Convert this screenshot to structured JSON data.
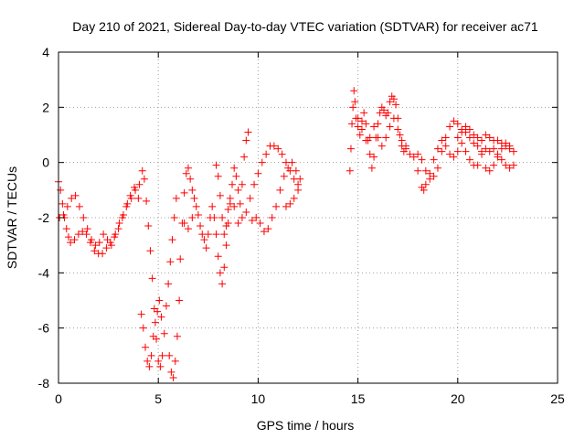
{
  "chart_data": {
    "type": "scatter",
    "title": "Day 210 of 2021, Sidereal Day-to-day VTEC variation (SDTVAR) for receiver ac71",
    "xlabel": "GPS time / hours",
    "ylabel": "SDTVAR / TECUs",
    "xlim": [
      0,
      25
    ],
    "ylim": [
      -8,
      4
    ],
    "x_ticks": [
      0,
      5,
      10,
      15,
      20,
      25
    ],
    "y_ticks": [
      -8,
      -6,
      -4,
      -2,
      0,
      2,
      4
    ],
    "grid": true,
    "marker": "+",
    "series": [
      {
        "name": "SDTVAR",
        "color": "#ff0000",
        "points": [
          [
            0.0,
            -0.7
          ],
          [
            0.1,
            -1.0
          ],
          [
            0.2,
            -1.5
          ],
          [
            0.3,
            -2.0
          ],
          [
            0.4,
            -2.4
          ],
          [
            0.5,
            -2.7
          ],
          [
            0.6,
            -2.9
          ],
          [
            0.8,
            -2.8
          ],
          [
            1.0,
            -2.6
          ],
          [
            1.2,
            -2.5
          ],
          [
            1.4,
            -2.6
          ],
          [
            1.6,
            -2.9
          ],
          [
            1.8,
            -3.2
          ],
          [
            2.0,
            -3.3
          ],
          [
            2.2,
            -3.3
          ],
          [
            2.4,
            -3.1
          ],
          [
            2.6,
            -2.9
          ],
          [
            2.8,
            -2.7
          ],
          [
            3.0,
            -2.4
          ],
          [
            3.2,
            -2.0
          ],
          [
            3.4,
            -1.6
          ],
          [
            3.6,
            -1.2
          ],
          [
            3.8,
            -0.9
          ],
          [
            4.0,
            -1.3
          ],
          [
            0.05,
            -2.0
          ],
          [
            0.25,
            -1.9
          ],
          [
            0.45,
            -1.6
          ],
          [
            0.65,
            -1.3
          ],
          [
            0.85,
            -1.2
          ],
          [
            1.05,
            -1.6
          ],
          [
            1.25,
            -2.0
          ],
          [
            1.45,
            -2.4
          ],
          [
            1.65,
            -2.8
          ],
          [
            1.85,
            -3.0
          ],
          [
            2.05,
            -2.9
          ],
          [
            2.25,
            -2.6
          ],
          [
            2.45,
            -2.8
          ],
          [
            2.65,
            -3.0
          ],
          [
            2.85,
            -2.6
          ],
          [
            3.05,
            -2.2
          ],
          [
            3.25,
            -1.9
          ],
          [
            3.45,
            -1.5
          ],
          [
            3.65,
            -1.3
          ],
          [
            3.85,
            -1.0
          ],
          [
            4.05,
            -0.8
          ],
          [
            4.2,
            -0.3
          ],
          [
            4.3,
            -0.6
          ],
          [
            4.4,
            -1.4
          ],
          [
            4.5,
            -2.3
          ],
          [
            4.6,
            -3.2
          ],
          [
            4.7,
            -4.2
          ],
          [
            4.8,
            -5.3
          ],
          [
            4.9,
            -6.4
          ],
          [
            5.0,
            -7.2
          ],
          [
            5.1,
            -7.4
          ],
          [
            5.2,
            -7.0
          ],
          [
            4.15,
            -5.5
          ],
          [
            4.25,
            -6.0
          ],
          [
            4.35,
            -6.7
          ],
          [
            4.45,
            -7.2
          ],
          [
            4.55,
            -7.4
          ],
          [
            4.65,
            -7.0
          ],
          [
            4.75,
            -6.3
          ],
          [
            4.85,
            -5.8
          ],
          [
            4.95,
            -5.4
          ],
          [
            5.05,
            -5.0
          ],
          [
            5.15,
            -5.6
          ],
          [
            5.3,
            -6.2
          ],
          [
            5.4,
            -5.2
          ],
          [
            5.5,
            -4.4
          ],
          [
            5.6,
            -3.6
          ],
          [
            5.7,
            -2.8
          ],
          [
            5.8,
            -2.0
          ],
          [
            5.9,
            -1.3
          ],
          [
            5.55,
            -7.0
          ],
          [
            5.65,
            -7.6
          ],
          [
            5.75,
            -7.8
          ],
          [
            5.85,
            -7.2
          ],
          [
            5.95,
            -6.3
          ],
          [
            6.05,
            -5.0
          ],
          [
            6.1,
            -3.5
          ],
          [
            6.2,
            -2.2
          ],
          [
            6.3,
            -1.1
          ],
          [
            6.4,
            -0.4
          ],
          [
            6.5,
            -0.2
          ],
          [
            6.6,
            -0.6
          ],
          [
            6.7,
            -1.0
          ],
          [
            6.8,
            -1.3
          ],
          [
            6.3,
            -2.2
          ],
          [
            6.5,
            -2.4
          ],
          [
            6.7,
            -2.0
          ],
          [
            6.9,
            -1.6
          ],
          [
            7.0,
            -1.9
          ],
          [
            7.1,
            -2.3
          ],
          [
            7.2,
            -2.6
          ],
          [
            7.3,
            -2.8
          ],
          [
            7.4,
            -3.1
          ],
          [
            7.5,
            -2.6
          ],
          [
            7.6,
            -2.0
          ],
          [
            7.7,
            -1.6
          ],
          [
            7.8,
            -2.0
          ],
          [
            7.9,
            -2.6
          ],
          [
            8.0,
            -3.4
          ],
          [
            8.1,
            -4.0
          ],
          [
            8.2,
            -4.4
          ],
          [
            8.3,
            -3.8
          ],
          [
            8.4,
            -3.0
          ],
          [
            8.5,
            -2.2
          ],
          [
            8.6,
            -1.5
          ],
          [
            8.7,
            -0.8
          ],
          [
            8.8,
            -0.2
          ],
          [
            8.9,
            -0.5
          ],
          [
            9.0,
            -1.0
          ],
          [
            9.1,
            -1.5
          ],
          [
            9.2,
            -0.8
          ],
          [
            9.3,
            0.2
          ],
          [
            9.4,
            0.8
          ],
          [
            9.5,
            1.1
          ],
          [
            7.9,
            -0.1
          ],
          [
            8.0,
            -0.5
          ],
          [
            8.1,
            -1.2
          ],
          [
            8.2,
            -2.0
          ],
          [
            8.3,
            -2.6
          ],
          [
            8.4,
            -2.3
          ],
          [
            8.5,
            -1.7
          ],
          [
            8.6,
            -1.3
          ],
          [
            8.8,
            -1.6
          ],
          [
            9.0,
            -2.2
          ],
          [
            9.2,
            -2.0
          ],
          [
            9.4,
            -1.8
          ],
          [
            9.6,
            -1.3
          ],
          [
            9.8,
            -0.8
          ],
          [
            10.0,
            -0.4
          ],
          [
            10.2,
            0.0
          ],
          [
            10.4,
            0.3
          ],
          [
            10.6,
            0.6
          ],
          [
            10.8,
            0.6
          ],
          [
            11.0,
            0.5
          ],
          [
            11.2,
            0.3
          ],
          [
            11.4,
            0.0
          ],
          [
            11.6,
            -0.3
          ],
          [
            11.8,
            -0.6
          ],
          [
            12.0,
            -0.8
          ],
          [
            12.1,
            -0.6
          ],
          [
            9.7,
            -2.1
          ],
          [
            9.9,
            -2.0
          ],
          [
            10.1,
            -2.2
          ],
          [
            10.3,
            -2.5
          ],
          [
            10.5,
            -2.4
          ],
          [
            10.7,
            -2.0
          ],
          [
            10.9,
            -1.6
          ],
          [
            11.1,
            -1.0
          ],
          [
            11.3,
            -0.5
          ],
          [
            11.5,
            -0.2
          ],
          [
            11.7,
            0.0
          ],
          [
            11.9,
            -0.3
          ],
          [
            12.0,
            -1.0
          ],
          [
            11.8,
            -1.3
          ],
          [
            11.6,
            -1.5
          ],
          [
            11.4,
            -1.6
          ],
          [
            14.6,
            -0.3
          ],
          [
            14.65,
            0.5
          ],
          [
            14.7,
            1.4
          ],
          [
            14.75,
            2.0
          ],
          [
            14.8,
            2.6
          ],
          [
            14.85,
            2.2
          ],
          [
            14.9,
            1.6
          ],
          [
            15.0,
            1.3
          ],
          [
            15.1,
            1.0
          ],
          [
            15.2,
            1.5
          ],
          [
            15.3,
            1.8
          ],
          [
            15.4,
            1.4
          ],
          [
            15.5,
            0.8
          ],
          [
            15.6,
            0.3
          ],
          [
            15.7,
            -0.2
          ],
          [
            15.8,
            0.2
          ],
          [
            15.9,
            0.9
          ],
          [
            16.0,
            1.4
          ],
          [
            16.1,
            1.8
          ],
          [
            16.2,
            2.0
          ],
          [
            16.3,
            1.9
          ],
          [
            16.4,
            1.7
          ],
          [
            16.5,
            1.8
          ],
          [
            16.6,
            2.2
          ],
          [
            16.7,
            2.4
          ],
          [
            16.8,
            2.3
          ],
          [
            16.9,
            2.1
          ],
          [
            17.0,
            1.6
          ],
          [
            17.1,
            1.0
          ],
          [
            17.2,
            0.6
          ],
          [
            17.3,
            0.4
          ],
          [
            17.4,
            0.6
          ],
          [
            15.0,
            1.6
          ],
          [
            15.2,
            1.2
          ],
          [
            15.4,
            0.8
          ],
          [
            15.6,
            0.9
          ],
          [
            15.8,
            1.3
          ],
          [
            16.0,
            0.9
          ],
          [
            16.2,
            0.6
          ],
          [
            16.4,
            0.9
          ],
          [
            16.6,
            1.3
          ],
          [
            16.8,
            1.6
          ],
          [
            17.0,
            1.2
          ],
          [
            17.2,
            0.8
          ],
          [
            17.4,
            0.5
          ],
          [
            17.6,
            0.3
          ],
          [
            17.8,
            0.2
          ],
          [
            18.0,
            0.3
          ],
          [
            18.2,
            0.1
          ],
          [
            18.4,
            -0.3
          ],
          [
            18.6,
            -0.6
          ],
          [
            18.8,
            -0.5
          ],
          [
            19.0,
            -0.2
          ],
          [
            19.2,
            0.4
          ],
          [
            19.4,
            0.9
          ],
          [
            19.6,
            1.3
          ],
          [
            19.8,
            1.5
          ],
          [
            20.0,
            1.4
          ],
          [
            20.2,
            1.2
          ],
          [
            20.4,
            1.1
          ],
          [
            20.6,
            0.9
          ],
          [
            20.8,
            0.7
          ],
          [
            21.0,
            0.6
          ],
          [
            21.2,
            0.8
          ],
          [
            21.4,
            1.0
          ],
          [
            21.6,
            0.9
          ],
          [
            21.8,
            0.8
          ],
          [
            22.0,
            0.8
          ],
          [
            22.2,
            0.7
          ],
          [
            22.4,
            0.6
          ],
          [
            22.6,
            0.5
          ],
          [
            22.8,
            0.4
          ],
          [
            18.0,
            -0.3
          ],
          [
            18.2,
            -0.9
          ],
          [
            18.3,
            -1.0
          ],
          [
            18.4,
            -0.8
          ],
          [
            18.6,
            -0.4
          ],
          [
            18.8,
            0.1
          ],
          [
            19.0,
            0.5
          ],
          [
            19.2,
            0.8
          ],
          [
            19.4,
            0.6
          ],
          [
            19.6,
            0.3
          ],
          [
            19.8,
            0.2
          ],
          [
            20.0,
            0.4
          ],
          [
            20.2,
            0.7
          ],
          [
            20.4,
            0.4
          ],
          [
            20.6,
            0.1
          ],
          [
            20.8,
            -0.1
          ],
          [
            21.0,
            -0.1
          ],
          [
            21.2,
            0.3
          ],
          [
            21.4,
            0.5
          ],
          [
            21.6,
            0.4
          ],
          [
            21.8,
            0.5
          ],
          [
            22.0,
            0.3
          ],
          [
            22.2,
            0.1
          ],
          [
            22.4,
            -0.1
          ],
          [
            22.6,
            -0.2
          ],
          [
            22.8,
            -0.1
          ],
          [
            20.0,
            0.9
          ],
          [
            20.2,
            1.1
          ],
          [
            20.4,
            1.3
          ],
          [
            20.6,
            1.2
          ],
          [
            20.8,
            1.0
          ],
          [
            21.0,
            0.9
          ],
          [
            21.2,
            0.4
          ],
          [
            21.4,
            -0.2
          ],
          [
            21.6,
            -0.3
          ],
          [
            21.8,
            -0.1
          ],
          [
            22.0,
            0.2
          ],
          [
            22.2,
            0.5
          ],
          [
            22.4,
            0.7
          ],
          [
            22.6,
            0.6
          ]
        ]
      }
    ]
  }
}
